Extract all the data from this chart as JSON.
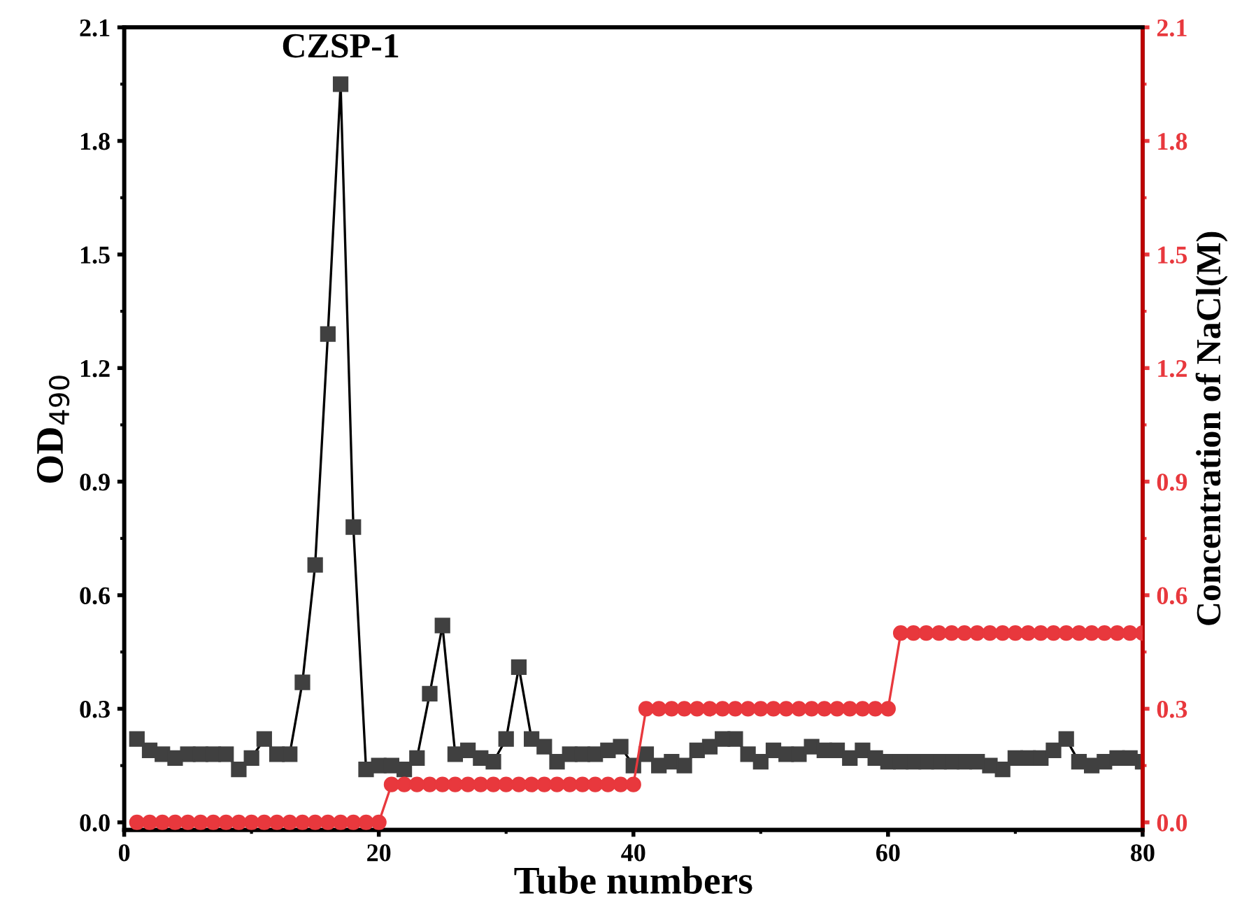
{
  "chart_data": {
    "type": "line",
    "xlabel": "Tube numbers",
    "ylabel": "OD$_{490}$",
    "y2label": "Concentration of NaCl(M)",
    "annotations": [
      {
        "text": "CZSP-1",
        "x": 17,
        "y": 1.95
      }
    ],
    "x": [
      1,
      2,
      3,
      4,
      5,
      6,
      7,
      8,
      9,
      10,
      11,
      12,
      13,
      14,
      15,
      16,
      17,
      18,
      19,
      20,
      21,
      22,
      23,
      24,
      25,
      26,
      27,
      28,
      29,
      30,
      31,
      32,
      33,
      34,
      35,
      36,
      37,
      38,
      39,
      40,
      41,
      42,
      43,
      44,
      45,
      46,
      47,
      48,
      49,
      50,
      51,
      52,
      53,
      54,
      55,
      56,
      57,
      58,
      59,
      60,
      61,
      62,
      63,
      64,
      65,
      66,
      67,
      68,
      69,
      70,
      71,
      72,
      73,
      74,
      75,
      76,
      77,
      78,
      79,
      80
    ],
    "series": [
      {
        "color": "#404040",
        "marker": "square",
        "values": [
          0.22,
          0.19,
          0.18,
          0.17,
          0.18,
          0.18,
          0.18,
          0.18,
          0.14,
          0.17,
          0.22,
          0.18,
          0.18,
          0.37,
          0.68,
          1.29,
          1.95,
          0.78,
          0.14,
          0.15,
          0.15,
          0.14,
          0.17,
          0.34,
          0.52,
          0.18,
          0.19,
          0.17,
          0.16,
          0.22,
          0.41,
          0.22,
          0.2,
          0.16,
          0.18,
          0.18,
          0.18,
          0.19,
          0.2,
          0.15,
          0.18,
          0.15,
          0.16,
          0.15,
          0.19,
          0.2,
          0.22,
          0.22,
          0.18,
          0.16,
          0.19,
          0.18,
          0.18,
          0.2,
          0.19,
          0.19,
          0.17,
          0.19,
          0.17,
          0.16,
          0.16,
          0.16,
          0.16,
          0.16,
          0.16,
          0.16,
          0.16,
          0.15,
          0.14,
          0.17,
          0.17,
          0.17,
          0.19,
          0.22,
          0.16,
          0.15,
          0.16,
          0.17,
          0.17,
          0.16
        ]
      },
      {
        "color": "#e8383d",
        "marker": "circle",
        "axis": "y2",
        "values": [
          0,
          0,
          0,
          0,
          0,
          0,
          0,
          0,
          0,
          0,
          0,
          0,
          0,
          0,
          0,
          0,
          0,
          0,
          0,
          0,
          0.1,
          0.1,
          0.1,
          0.1,
          0.1,
          0.1,
          0.1,
          0.1,
          0.1,
          0.1,
          0.1,
          0.1,
          0.1,
          0.1,
          0.1,
          0.1,
          0.1,
          0.1,
          0.1,
          0.1,
          0.3,
          0.3,
          0.3,
          0.3,
          0.3,
          0.3,
          0.3,
          0.3,
          0.3,
          0.3,
          0.3,
          0.3,
          0.3,
          0.3,
          0.3,
          0.3,
          0.3,
          0.3,
          0.3,
          0.3,
          0.5,
          0.5,
          0.5,
          0.5,
          0.5,
          0.5,
          0.5,
          0.5,
          0.5,
          0.5,
          0.5,
          0.5,
          0.5,
          0.5,
          0.5,
          0.5,
          0.5,
          0.5,
          0.5,
          0.5
        ]
      }
    ],
    "xlim": [
      0,
      80
    ],
    "xticks": [
      0,
      20,
      40,
      60,
      80
    ],
    "ylim": [
      -0.02,
      2.1
    ],
    "yticks": [
      {
        "value": 0,
        "label": "0.0"
      },
      0.3,
      0.6,
      0.9,
      1.2,
      1.5,
      1.8,
      2.1
    ],
    "y2lim": [
      -0.02,
      2.1
    ],
    "y2ticks": [
      {
        "value": 0,
        "label": "0.0"
      },
      0.3,
      0.6,
      0.9,
      1.2,
      1.5,
      1.8,
      2.1
    ],
    "grid": false,
    "legend": false,
    "line_style": "solid"
  }
}
